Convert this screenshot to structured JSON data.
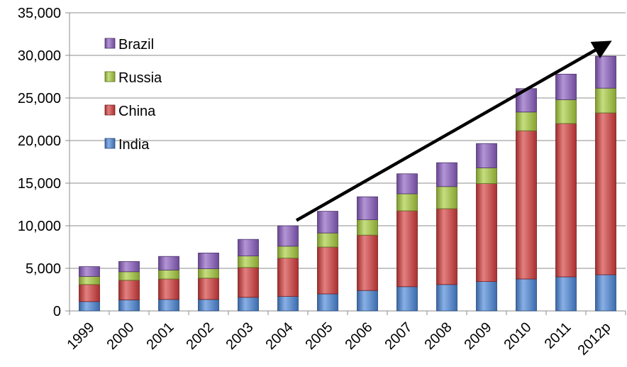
{
  "chart_data": {
    "type": "bar",
    "stacked": true,
    "categories": [
      "1999",
      "2000",
      "2001",
      "2002",
      "2003",
      "2004",
      "2005",
      "2006",
      "2007",
      "2008",
      "2009",
      "2010",
      "2011",
      "2012p"
    ],
    "series": [
      {
        "name": "India",
        "color": "#4a86d8",
        "values": [
          1100,
          1300,
          1350,
          1350,
          1600,
          1700,
          2000,
          2400,
          2850,
          3100,
          3450,
          3750,
          4000,
          4250
        ]
      },
      {
        "name": "China",
        "color": "#d43b3b",
        "values": [
          2000,
          2300,
          2400,
          2500,
          3500,
          4500,
          5500,
          6500,
          8900,
          8900,
          11500,
          17400,
          18000,
          19000
        ]
      },
      {
        "name": "Russia",
        "color": "#a8cc3c",
        "values": [
          950,
          1000,
          1050,
          1100,
          1350,
          1400,
          1650,
          1800,
          2000,
          2600,
          1850,
          2200,
          2800,
          2900
        ]
      },
      {
        "name": "Brazil",
        "color": "#8a5cc0",
        "values": [
          1150,
          1200,
          1600,
          1850,
          1950,
          2400,
          2550,
          2700,
          2350,
          2800,
          2850,
          2750,
          3000,
          3750
        ]
      }
    ],
    "y_ticks": [
      "0",
      "5,000",
      "10,000",
      "15,000",
      "20,000",
      "25,000",
      "30,000",
      "35,000"
    ],
    "ylim": [
      0,
      35000
    ],
    "grid": true,
    "legend_position": "top-left",
    "title": "",
    "xlabel": "",
    "ylabel": "",
    "annotation": {
      "type": "arrow",
      "from": {
        "x": "2004",
        "y": 10800
      },
      "to": {
        "x": "2012p",
        "y": 31500
      }
    }
  }
}
